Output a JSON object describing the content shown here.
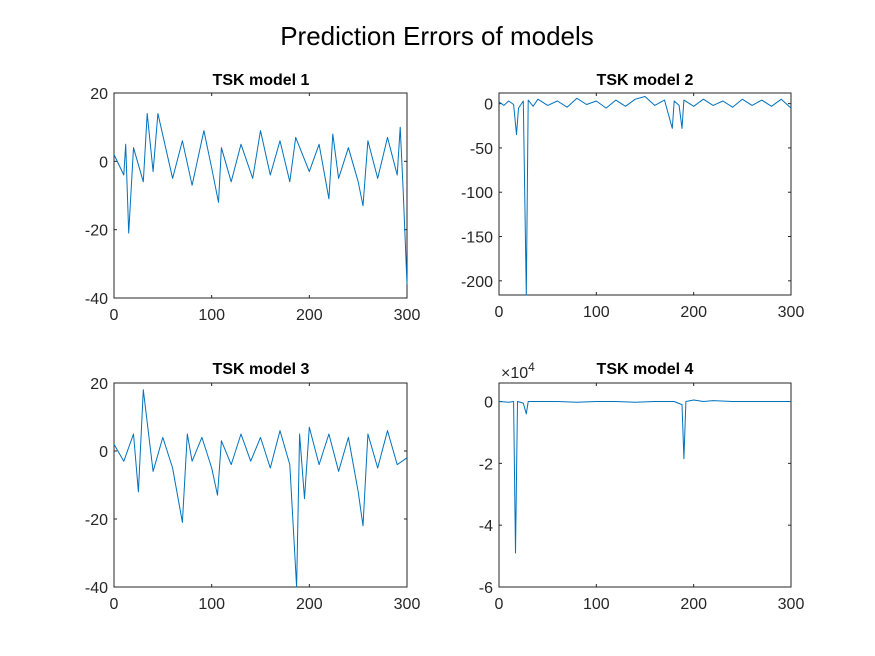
{
  "figure": {
    "suptitle": "Prediction Errors of models",
    "line_color": "#0072BD"
  },
  "chart_data": [
    {
      "type": "line",
      "title": "TSK model 1",
      "xlabel": "",
      "ylabel": "",
      "xlim": [
        0,
        300
      ],
      "ylim": [
        -40,
        20
      ],
      "xticks": [
        0,
        100,
        200,
        300
      ],
      "yticks": [
        -40,
        -20,
        0,
        20
      ],
      "exponent": "",
      "grid": false,
      "series": [
        {
          "x": [
            0,
            10,
            12,
            15,
            20,
            30,
            34,
            40,
            45,
            60,
            70,
            80,
            92,
            100,
            107,
            110,
            120,
            130,
            142,
            150,
            160,
            170,
            180,
            186,
            200,
            210,
            220,
            224,
            230,
            240,
            250,
            255,
            260,
            270,
            280,
            290,
            293,
            296,
            300
          ],
          "y": [
            2,
            -4,
            5,
            -21,
            4,
            -6,
            14,
            -3,
            14,
            -5,
            6,
            -7,
            9,
            -2,
            -12,
            4,
            -6,
            5,
            -5,
            9,
            -4,
            6,
            -6,
            7,
            -3,
            5,
            -11,
            8,
            -5,
            4,
            -6,
            -13,
            6,
            -5,
            7,
            -4,
            10,
            -8,
            -36
          ]
        }
      ]
    },
    {
      "type": "line",
      "title": "TSK model 2",
      "xlabel": "",
      "ylabel": "",
      "xlim": [
        0,
        300
      ],
      "ylim": [
        -216,
        12
      ],
      "xticks": [
        0,
        100,
        200,
        300
      ],
      "yticks": [
        -200,
        -150,
        -100,
        -50,
        0
      ],
      "exponent": "",
      "grid": false,
      "series": [
        {
          "x": [
            0,
            5,
            10,
            15,
            18,
            20,
            25,
            28,
            30,
            35,
            40,
            50,
            60,
            70,
            80,
            90,
            100,
            110,
            120,
            130,
            140,
            150,
            160,
            170,
            178,
            180,
            185,
            188,
            190,
            200,
            210,
            220,
            230,
            240,
            250,
            260,
            270,
            280,
            290,
            300
          ],
          "y": [
            2,
            -2,
            3,
            -1,
            -35,
            -5,
            3,
            -216,
            4,
            -3,
            5,
            -2,
            3,
            -4,
            6,
            -1,
            3,
            -5,
            4,
            -3,
            5,
            8,
            -2,
            4,
            -28,
            3,
            -2,
            -28,
            4,
            -3,
            5,
            -2,
            3,
            -4,
            5,
            -2,
            4,
            -3,
            5,
            -5
          ]
        }
      ]
    },
    {
      "type": "line",
      "title": "TSK model 3",
      "xlabel": "",
      "ylabel": "",
      "xlim": [
        0,
        300
      ],
      "ylim": [
        -40,
        20
      ],
      "xticks": [
        0,
        100,
        200,
        300
      ],
      "yticks": [
        -40,
        -20,
        0,
        20
      ],
      "exponent": "",
      "grid": false,
      "series": [
        {
          "x": [
            0,
            10,
            20,
            25,
            30,
            40,
            50,
            60,
            70,
            75,
            80,
            90,
            100,
            106,
            110,
            120,
            130,
            140,
            150,
            160,
            170,
            180,
            187,
            190,
            195,
            200,
            210,
            220,
            230,
            240,
            250,
            255,
            260,
            270,
            280,
            290,
            300
          ],
          "y": [
            2,
            -3,
            5,
            -12,
            18,
            -6,
            4,
            -5,
            -21,
            5,
            -3,
            4,
            -5,
            -13,
            3,
            -4,
            5,
            -3,
            4,
            -5,
            6,
            -4,
            -40,
            5,
            -14,
            7,
            -4,
            5,
            -6,
            4,
            -12,
            -22,
            5,
            -5,
            6,
            -4,
            -2
          ]
        }
      ]
    },
    {
      "type": "line",
      "title": "TSK model 4",
      "xlabel": "",
      "ylabel": "",
      "xlim": [
        0,
        300
      ],
      "ylim": [
        -6,
        0.6
      ],
      "xticks": [
        0,
        100,
        200,
        300
      ],
      "yticks": [
        -6,
        -4,
        -2,
        0
      ],
      "exponent": "×10^4",
      "grid": false,
      "series": [
        {
          "x": [
            0,
            10,
            15,
            17,
            19,
            25,
            28,
            30,
            40,
            60,
            80,
            100,
            120,
            140,
            160,
            180,
            188,
            190,
            192,
            200,
            210,
            220,
            240,
            260,
            280,
            300
          ],
          "y": [
            0,
            -0.02,
            0,
            -4.9,
            0,
            -0.05,
            -0.4,
            0,
            0,
            0,
            -0.02,
            0,
            0,
            -0.02,
            0,
            0,
            -0.1,
            -1.85,
            0,
            0.05,
            0,
            0.03,
            0,
            0,
            0,
            0
          ]
        }
      ]
    }
  ]
}
